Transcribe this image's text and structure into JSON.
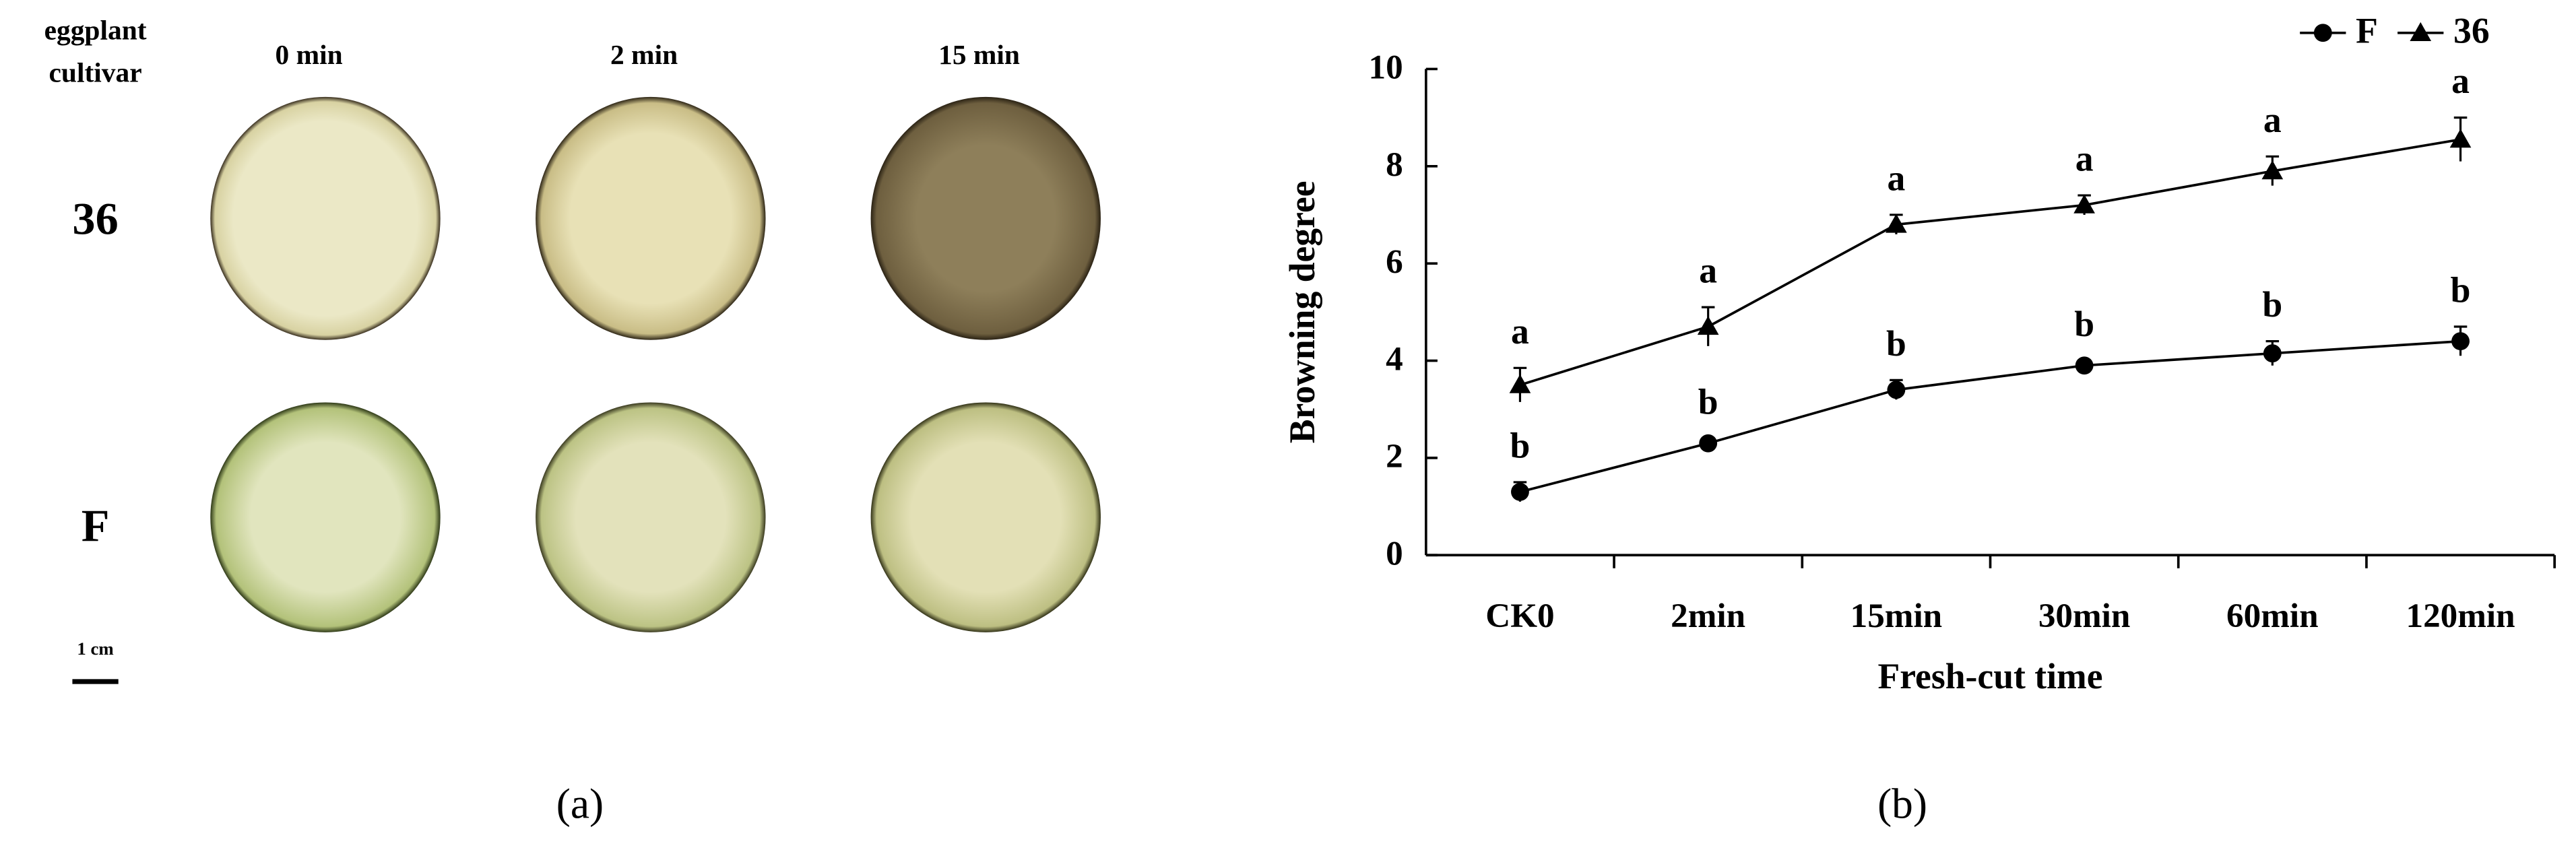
{
  "panel_a": {
    "header": [
      "eggplant",
      "cultivar"
    ],
    "columns": [
      "0 min",
      "2 min",
      "15 min"
    ],
    "rows": [
      "36",
      "F"
    ],
    "scale_bar": "1 cm",
    "label": "(a)"
  },
  "chart_data": {
    "type": "line",
    "label": "(b)",
    "x_label": "Fresh-cut time",
    "y_label": "Browning degree",
    "categories": [
      "CK0",
      "2min",
      "15min",
      "30min",
      "60min",
      "120min"
    ],
    "ylim": [
      0,
      10
    ],
    "yticks": [
      0,
      2,
      4,
      6,
      8,
      10
    ],
    "grid": false,
    "legend": "top-right",
    "series": [
      {
        "name": "F",
        "color": "#000000",
        "marker": "circle",
        "values": [
          1.3,
          2.3,
          3.4,
          3.9,
          4.15,
          4.4
        ],
        "errors": [
          0.2,
          0.1,
          0.2,
          0.1,
          0.25,
          0.3
        ],
        "letters": [
          "b",
          "b",
          "b",
          "b",
          "b",
          "b"
        ]
      },
      {
        "name": "36",
        "color": "#000000",
        "marker": "triangle",
        "values": [
          3.5,
          4.7,
          6.8,
          7.2,
          7.9,
          8.55
        ],
        "errors": [
          0.35,
          0.4,
          0.2,
          0.2,
          0.3,
          0.45
        ],
        "letters": [
          "a",
          "a",
          "a",
          "a",
          "a",
          "a"
        ]
      }
    ]
  }
}
